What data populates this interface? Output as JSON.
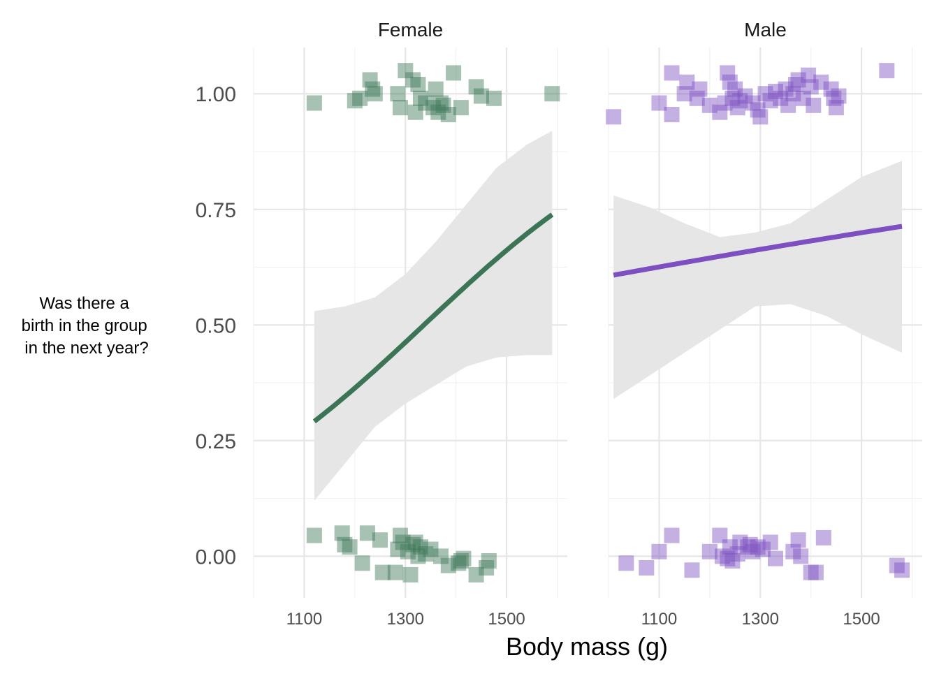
{
  "chart_data": {
    "type": "scatter",
    "xlabel": "Body mass (g)",
    "ylabel": [
      "Was there a",
      "birth in the group",
      "in the next year?"
    ],
    "xlim": [
      1000,
      1620
    ],
    "ylim": [
      -0.09,
      1.1
    ],
    "x_ticks": [
      1100,
      1300,
      1500
    ],
    "x_tick_labels": [
      "1100",
      "1300",
      "1500"
    ],
    "x_minor": [
      1000,
      1200,
      1400,
      1600
    ],
    "y_ticks": [
      0,
      0.25,
      0.5,
      0.75,
      1
    ],
    "y_tick_labels": [
      "0.00",
      "0.25",
      "0.50",
      "0.75",
      "1.00"
    ],
    "y_minor": [
      0.125,
      0.375,
      0.625,
      0.875
    ],
    "grid": true,
    "legend": "none",
    "panels": [
      {
        "strip": "Female",
        "color": "#3c7556",
        "points": [
          [
            1120,
            0.98
          ],
          [
            1200,
            0.985
          ],
          [
            1210,
            0.99
          ],
          [
            1230,
            1.03
          ],
          [
            1235,
            1.01
          ],
          [
            1240,
            1.0
          ],
          [
            1285,
            1.0
          ],
          [
            1290,
            0.97
          ],
          [
            1300,
            1.05
          ],
          [
            1315,
            1.03
          ],
          [
            1320,
            0.96
          ],
          [
            1325,
            1.02
          ],
          [
            1330,
            0.99
          ],
          [
            1340,
            0.98
          ],
          [
            1355,
            0.97
          ],
          [
            1360,
            1.01
          ],
          [
            1365,
            0.96
          ],
          [
            1370,
            0.98
          ],
          [
            1375,
            0.975
          ],
          [
            1385,
            0.955
          ],
          [
            1395,
            1.045
          ],
          [
            1410,
            0.97
          ],
          [
            1440,
            1.015
          ],
          [
            1450,
            0.995
          ],
          [
            1475,
            0.99
          ],
          [
            1590,
            1.0
          ],
          [
            1120,
            0.045
          ],
          [
            1175,
            0.05
          ],
          [
            1180,
            0.025
          ],
          [
            1190,
            0.02
          ],
          [
            1215,
            -0.015
          ],
          [
            1225,
            0.05
          ],
          [
            1250,
            0.035
          ],
          [
            1255,
            -0.035
          ],
          [
            1280,
            -0.035
          ],
          [
            1285,
            0.015
          ],
          [
            1290,
            0.045
          ],
          [
            1295,
            0.03
          ],
          [
            1305,
            0.01
          ],
          [
            1310,
            -0.04
          ],
          [
            1315,
            0.025
          ],
          [
            1320,
            0.03
          ],
          [
            1325,
            0.0
          ],
          [
            1330,
            0.02
          ],
          [
            1340,
            0.005
          ],
          [
            1350,
            0.015
          ],
          [
            1370,
            0.0
          ],
          [
            1385,
            -0.02
          ],
          [
            1405,
            -0.015
          ],
          [
            1410,
            -0.01
          ],
          [
            1415,
            -0.005
          ],
          [
            1440,
            -0.04
          ],
          [
            1460,
            -0.025
          ],
          [
            1465,
            -0.01
          ]
        ],
        "fit_x": [
          1120,
          1590
        ],
        "fit_intercept": -5.48,
        "fit_slope": 0.0041,
        "ci_x": [
          1120,
          1180,
          1240,
          1300,
          1360,
          1420,
          1480,
          1540,
          1590
        ],
        "ci_upper": [
          0.53,
          0.54,
          0.56,
          0.61,
          0.68,
          0.76,
          0.84,
          0.89,
          0.92
        ],
        "ci_lower": [
          0.12,
          0.2,
          0.28,
          0.33,
          0.37,
          0.41,
          0.43,
          0.435,
          0.435
        ]
      },
      {
        "strip": "Male",
        "color": "#7d4fc1",
        "points": [
          [
            1010,
            0.95
          ],
          [
            1100,
            0.98
          ],
          [
            1125,
            0.955
          ],
          [
            1125,
            1.045
          ],
          [
            1150,
            1.0
          ],
          [
            1155,
            1.025
          ],
          [
            1175,
            0.99
          ],
          [
            1180,
            1.01
          ],
          [
            1200,
            0.975
          ],
          [
            1220,
            0.96
          ],
          [
            1230,
            0.98
          ],
          [
            1235,
            1.045
          ],
          [
            1240,
            1.025
          ],
          [
            1245,
            0.99
          ],
          [
            1250,
            1.01
          ],
          [
            1255,
            0.97
          ],
          [
            1260,
            0.985
          ],
          [
            1270,
            0.995
          ],
          [
            1285,
            0.98
          ],
          [
            1295,
            0.965
          ],
          [
            1300,
            0.95
          ],
          [
            1310,
            1.0
          ],
          [
            1320,
            0.985
          ],
          [
            1330,
            1.005
          ],
          [
            1340,
            0.99
          ],
          [
            1350,
            1.01
          ],
          [
            1355,
            0.975
          ],
          [
            1365,
            1.0
          ],
          [
            1370,
            1.02
          ],
          [
            1375,
            1.03
          ],
          [
            1385,
            0.99
          ],
          [
            1395,
            1.04
          ],
          [
            1400,
            1.015
          ],
          [
            1405,
            0.975
          ],
          [
            1420,
            1.025
          ],
          [
            1440,
            1.01
          ],
          [
            1445,
            0.99
          ],
          [
            1450,
            0.97
          ],
          [
            1455,
            0.995
          ],
          [
            1550,
            1.05
          ],
          [
            1035,
            -0.015
          ],
          [
            1075,
            -0.025
          ],
          [
            1100,
            0.01
          ],
          [
            1125,
            0.045
          ],
          [
            1165,
            -0.03
          ],
          [
            1200,
            0.01
          ],
          [
            1220,
            0.045
          ],
          [
            1225,
            0.0
          ],
          [
            1235,
            -0.005
          ],
          [
            1240,
            0.02
          ],
          [
            1245,
            -0.01
          ],
          [
            1255,
            0.005
          ],
          [
            1260,
            0.03
          ],
          [
            1275,
            0.02
          ],
          [
            1280,
            0.025
          ],
          [
            1285,
            0.01
          ],
          [
            1295,
            0.02
          ],
          [
            1305,
            0.015
          ],
          [
            1320,
            0.03
          ],
          [
            1330,
            -0.005
          ],
          [
            1365,
            0.01
          ],
          [
            1375,
            0.035
          ],
          [
            1380,
            0.0
          ],
          [
            1400,
            -0.035
          ],
          [
            1410,
            -0.035
          ],
          [
            1425,
            0.04
          ],
          [
            1570,
            -0.02
          ],
          [
            1580,
            -0.03
          ]
        ],
        "fit_x": [
          1010,
          1580
        ],
        "fit_intercept": -0.4,
        "fit_slope": 0.00083,
        "ci_x": [
          1010,
          1080,
          1150,
          1220,
          1290,
          1360,
          1430,
          1500,
          1580
        ],
        "ci_upper": [
          0.78,
          0.755,
          0.72,
          0.69,
          0.7,
          0.72,
          0.77,
          0.82,
          0.855
        ],
        "ci_lower": [
          0.34,
          0.39,
          0.44,
          0.49,
          0.54,
          0.545,
          0.52,
          0.48,
          0.44
        ]
      }
    ]
  }
}
